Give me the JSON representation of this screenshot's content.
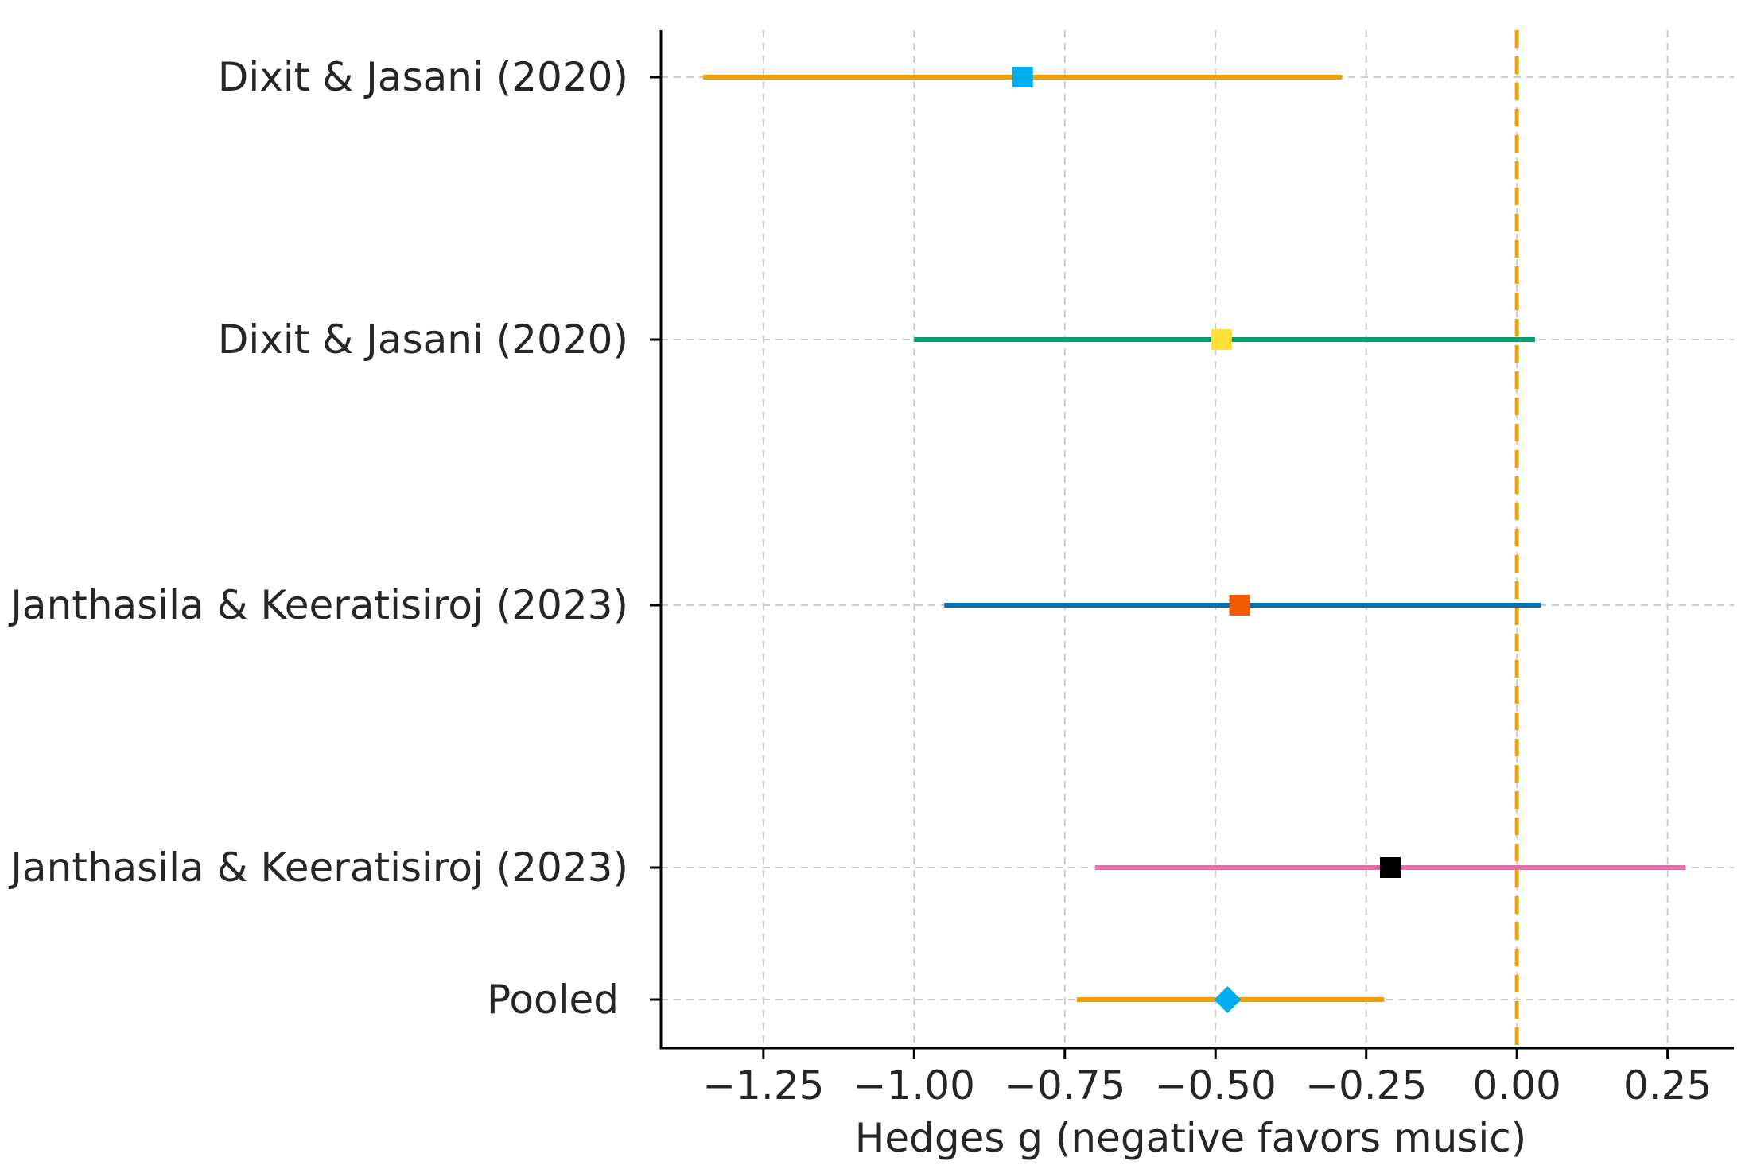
{
  "chart_data": {
    "type": "forest",
    "title": "",
    "xlabel": "Hedges g (negative favors music)",
    "ylabel": "",
    "xlim": [
      -1.42,
      0.36
    ],
    "xticks": [
      -1.25,
      -1.0,
      -0.75,
      -0.5,
      -0.25,
      0.0,
      0.25
    ],
    "xtick_labels": [
      "−1.25",
      "−1.00",
      "−0.75",
      "−0.50",
      "−0.25",
      "0.00",
      "0.25"
    ],
    "grid": true,
    "reference_line": {
      "x": 0.0,
      "color": "#F0A000",
      "style": "dashed"
    },
    "studies": [
      {
        "label": "Dixit & Jasani (2020)",
        "estimate": -0.82,
        "ci_low": -1.35,
        "ci_high": -0.29,
        "line_color": "#F0A000",
        "marker_color": "#00AEEF",
        "marker": "square"
      },
      {
        "label": "Dixit & Jasani (2020)",
        "estimate": -0.49,
        "ci_low": -1.0,
        "ci_high": 0.03,
        "line_color": "#009E73",
        "marker_color": "#FFE135",
        "marker": "square"
      },
      {
        "label": "Janthasila & Keeratisiroj (2023)",
        "estimate": -0.46,
        "ci_low": -0.95,
        "ci_high": 0.04,
        "line_color": "#0072B2",
        "marker_color": "#F05A00",
        "marker": "square"
      },
      {
        "label": "Janthasila & Keeratisiroj (2023)",
        "estimate": -0.21,
        "ci_low": -0.7,
        "ci_high": 0.28,
        "line_color": "#E36FAA",
        "marker_color": "#000000",
        "marker": "square"
      },
      {
        "label": "Pooled",
        "estimate": -0.48,
        "ci_low": -0.73,
        "ci_high": -0.22,
        "line_color": "#F0A000",
        "marker_color": "#00AEEF",
        "marker": "diamond"
      }
    ]
  }
}
